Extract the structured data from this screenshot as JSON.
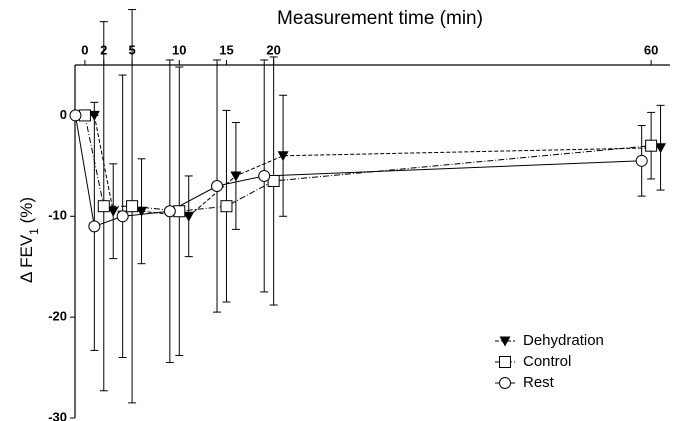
{
  "chart_data": {
    "type": "line",
    "xlabel": "Measurement time (min)",
    "ylabel": {
      "main": "Δ FEV",
      "sub": "1",
      "suffix": " (%)"
    },
    "xlim": [
      -1.05,
      62
    ],
    "xticks": [
      0,
      2,
      5,
      10,
      15,
      20,
      60
    ],
    "ylim": [
      -30,
      5
    ],
    "yticks": [
      0,
      -10,
      -20,
      -30
    ],
    "legend": "lower right",
    "series": [
      {
        "name": "Dehydration",
        "color": "#000000",
        "marker": "triangle-down",
        "dash": "4,2",
        "x": [
          1,
          3,
          6,
          11,
          16,
          21,
          61
        ],
        "values": [
          0,
          -9.5,
          -9.5,
          -10,
          -6,
          -4,
          -3.2
        ],
        "errors": [
          0,
          4.7,
          5.2,
          4,
          5.3,
          6,
          4.2
        ]
      },
      {
        "name": "Control",
        "color": "#000000",
        "marker": "square",
        "dash": "6,2,1,2",
        "x": [
          0,
          2,
          5,
          10,
          15,
          20,
          60
        ],
        "values": [
          0,
          -9,
          -9,
          -9.5,
          -9,
          -6.5,
          -3
        ],
        "errors": [
          0,
          18.3,
          19.5,
          14.3,
          9.5,
          12.3,
          3.3
        ]
      },
      {
        "name": "Rest",
        "color": "#000000",
        "marker": "circle",
        "dash": "none",
        "x": [
          -1,
          1,
          4,
          9,
          14,
          19,
          59
        ],
        "values": [
          0,
          -11,
          -10,
          -9.5,
          -7,
          -6,
          -4.5
        ],
        "errors": [
          0,
          12.3,
          14,
          15,
          12.5,
          11.5,
          3.5
        ]
      }
    ]
  }
}
